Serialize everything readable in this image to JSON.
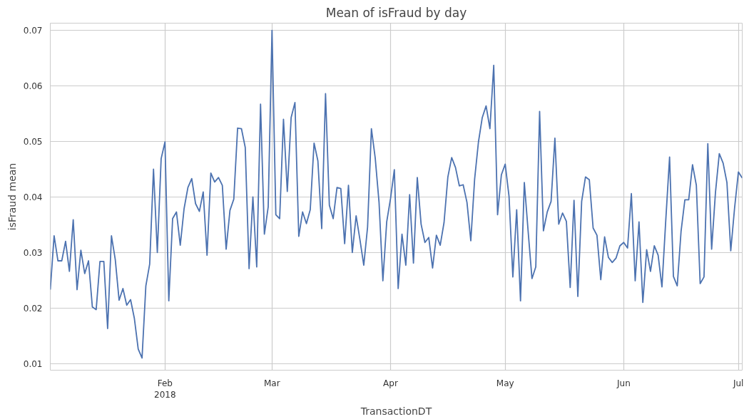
{
  "chart_data": {
    "type": "line",
    "title": "Mean of isFraud by day",
    "xlabel": "TransactionDT",
    "ylabel": "isFraud mean",
    "x": [
      "2018-01-02",
      "2018-01-03",
      "2018-01-04",
      "2018-01-05",
      "2018-01-06",
      "2018-01-07",
      "2018-01-08",
      "2018-01-09",
      "2018-01-10",
      "2018-01-11",
      "2018-01-12",
      "2018-01-13",
      "2018-01-14",
      "2018-01-15",
      "2018-01-16",
      "2018-01-17",
      "2018-01-18",
      "2018-01-19",
      "2018-01-20",
      "2018-01-21",
      "2018-01-22",
      "2018-01-23",
      "2018-01-24",
      "2018-01-25",
      "2018-01-26",
      "2018-01-27",
      "2018-01-28",
      "2018-01-29",
      "2018-01-30",
      "2018-01-31",
      "2018-02-01",
      "2018-02-02",
      "2018-02-03",
      "2018-02-04",
      "2018-02-05",
      "2018-02-06",
      "2018-02-07",
      "2018-02-08",
      "2018-02-09",
      "2018-02-10",
      "2018-02-11",
      "2018-02-12",
      "2018-02-13",
      "2018-02-14",
      "2018-02-15",
      "2018-02-16",
      "2018-02-17",
      "2018-02-18",
      "2018-02-19",
      "2018-02-20",
      "2018-02-21",
      "2018-02-22",
      "2018-02-23",
      "2018-02-24",
      "2018-02-25",
      "2018-02-26",
      "2018-02-27",
      "2018-02-28",
      "2018-03-01",
      "2018-03-02",
      "2018-03-03",
      "2018-03-04",
      "2018-03-05",
      "2018-03-06",
      "2018-03-07",
      "2018-03-08",
      "2018-03-09",
      "2018-03-10",
      "2018-03-11",
      "2018-03-12",
      "2018-03-13",
      "2018-03-14",
      "2018-03-15",
      "2018-03-16",
      "2018-03-17",
      "2018-03-18",
      "2018-03-19",
      "2018-03-20",
      "2018-03-21",
      "2018-03-22",
      "2018-03-23",
      "2018-03-24",
      "2018-03-25",
      "2018-03-26",
      "2018-03-27",
      "2018-03-28",
      "2018-03-29",
      "2018-03-30",
      "2018-03-31",
      "2018-04-01",
      "2018-04-02",
      "2018-04-03",
      "2018-04-04",
      "2018-04-05",
      "2018-04-06",
      "2018-04-07",
      "2018-04-08",
      "2018-04-09",
      "2018-04-10",
      "2018-04-11",
      "2018-04-12",
      "2018-04-13",
      "2018-04-14",
      "2018-04-15",
      "2018-04-16",
      "2018-04-17",
      "2018-04-18",
      "2018-04-19",
      "2018-04-20",
      "2018-04-21",
      "2018-04-22",
      "2018-04-23",
      "2018-04-24",
      "2018-04-25",
      "2018-04-26",
      "2018-04-27",
      "2018-04-28",
      "2018-04-29",
      "2018-04-30",
      "2018-05-01",
      "2018-05-02",
      "2018-05-03",
      "2018-05-04",
      "2018-05-05",
      "2018-05-06",
      "2018-05-07",
      "2018-05-08",
      "2018-05-09",
      "2018-05-10",
      "2018-05-11",
      "2018-05-12",
      "2018-05-13",
      "2018-05-14",
      "2018-05-15",
      "2018-05-16",
      "2018-05-17",
      "2018-05-18",
      "2018-05-19",
      "2018-05-20",
      "2018-05-21",
      "2018-05-22",
      "2018-05-23",
      "2018-05-24",
      "2018-05-25",
      "2018-05-26",
      "2018-05-27",
      "2018-05-28",
      "2018-05-29",
      "2018-05-30",
      "2018-05-31",
      "2018-06-01",
      "2018-06-02",
      "2018-06-03",
      "2018-06-04",
      "2018-06-05",
      "2018-06-06",
      "2018-06-07",
      "2018-06-08",
      "2018-06-09",
      "2018-06-10",
      "2018-06-11",
      "2018-06-12",
      "2018-06-13",
      "2018-06-14",
      "2018-06-15",
      "2018-06-16",
      "2018-06-17",
      "2018-06-18",
      "2018-06-19",
      "2018-06-20",
      "2018-06-21",
      "2018-06-22",
      "2018-06-23",
      "2018-06-24",
      "2018-06-25",
      "2018-06-26",
      "2018-06-27",
      "2018-06-28",
      "2018-06-29",
      "2018-06-30",
      "2018-07-01",
      "2018-07-02"
    ],
    "series": [
      {
        "color": "#4c72b0",
        "values": [
          0.0233,
          0.033,
          0.0285,
          0.0285,
          0.032,
          0.0266,
          0.0359,
          0.0233,
          0.0304,
          0.0262,
          0.0285,
          0.0202,
          0.0197,
          0.0284,
          0.0284,
          0.0163,
          0.033,
          0.0287,
          0.0214,
          0.0235,
          0.0205,
          0.0215,
          0.0181,
          0.0126,
          0.011,
          0.024,
          0.0279,
          0.045,
          0.03,
          0.0469,
          0.0499,
          0.0213,
          0.0361,
          0.0373,
          0.0313,
          0.0379,
          0.0417,
          0.0433,
          0.0388,
          0.0374,
          0.0409,
          0.0295,
          0.0443,
          0.0427,
          0.0435,
          0.0421,
          0.0306,
          0.0376,
          0.0396,
          0.0524,
          0.0523,
          0.0489,
          0.0271,
          0.04,
          0.0274,
          0.0567,
          0.0333,
          0.0382,
          0.07,
          0.0368,
          0.0361,
          0.054,
          0.041,
          0.0543,
          0.057,
          0.0329,
          0.0373,
          0.0352,
          0.0377,
          0.0497,
          0.0465,
          0.0343,
          0.0586,
          0.0385,
          0.0361,
          0.0417,
          0.0415,
          0.0316,
          0.0421,
          0.03,
          0.0366,
          0.0323,
          0.0277,
          0.0346,
          0.0523,
          0.047,
          0.039,
          0.0249,
          0.0355,
          0.0397,
          0.0449,
          0.0235,
          0.0333,
          0.0277,
          0.0404,
          0.0281,
          0.0435,
          0.0351,
          0.0318,
          0.0327,
          0.0272,
          0.0331,
          0.0313,
          0.0354,
          0.0436,
          0.0471,
          0.0453,
          0.042,
          0.0422,
          0.039,
          0.0321,
          0.0432,
          0.0499,
          0.0543,
          0.0564,
          0.0523,
          0.0637,
          0.0368,
          0.044,
          0.0459,
          0.0401,
          0.0256,
          0.0377,
          0.0213,
          0.0426,
          0.0338,
          0.0253,
          0.0274,
          0.0554,
          0.0339,
          0.0373,
          0.0392,
          0.0506,
          0.0351,
          0.0371,
          0.0356,
          0.0237,
          0.0394,
          0.0221,
          0.0392,
          0.0436,
          0.0431,
          0.0344,
          0.0331,
          0.0251,
          0.0328,
          0.0291,
          0.0282,
          0.029,
          0.0312,
          0.0318,
          0.0308,
          0.0406,
          0.0249,
          0.0355,
          0.021,
          0.0305,
          0.0266,
          0.0312,
          0.0295,
          0.0238,
          0.0358,
          0.0472,
          0.0257,
          0.024,
          0.0338,
          0.0395,
          0.0395,
          0.0458,
          0.0421,
          0.0244,
          0.0256,
          0.0496,
          0.0306,
          0.0408,
          0.0478,
          0.0461,
          0.0426,
          0.0303,
          0.038,
          0.0445,
          0.0434
        ]
      }
    ],
    "xlim": [
      "2018-01-02",
      "2018-07-02"
    ],
    "xticks": [
      {
        "value": "2018-02-01",
        "label": "Feb\n2018"
      },
      {
        "value": "2018-03-01",
        "label": "Mar"
      },
      {
        "value": "2018-04-01",
        "label": "Apr"
      },
      {
        "value": "2018-05-01",
        "label": "May"
      },
      {
        "value": "2018-06-01",
        "label": "Jun"
      },
      {
        "value": "2018-07-01",
        "label": "Jul"
      }
    ],
    "ylim": [
      0.0088,
      0.0713
    ],
    "yticks": [
      0.01,
      0.02,
      0.03,
      0.04,
      0.05,
      0.06,
      0.07
    ],
    "grid": true,
    "marker": "none",
    "line_style": "solid"
  }
}
